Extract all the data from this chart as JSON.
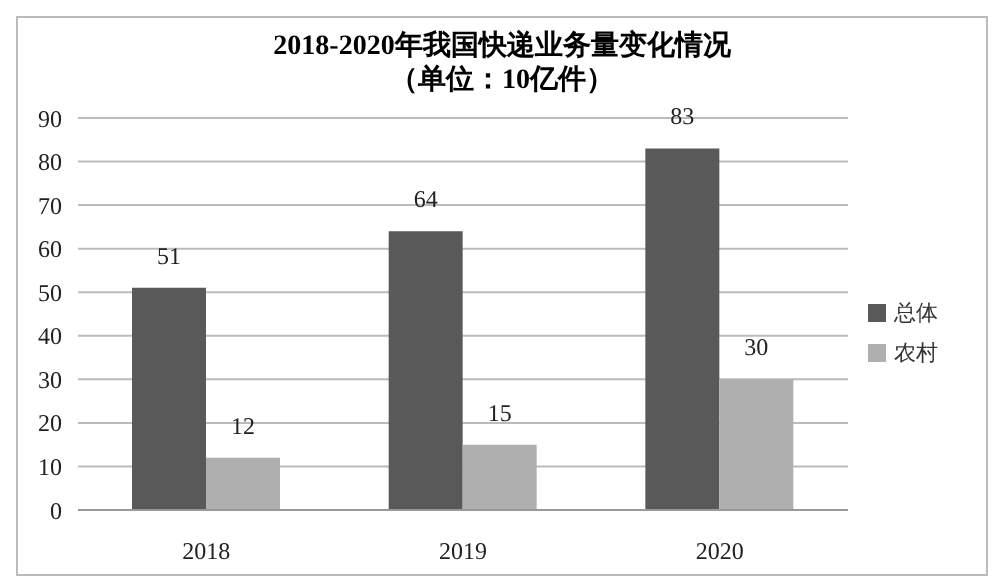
{
  "chart_data": {
    "type": "bar",
    "title": "2018-2020年我国快递业务量变化情况",
    "subtitle": "（单位：10亿件）",
    "categories": [
      "2018",
      "2019",
      "2020"
    ],
    "series": [
      {
        "name": "总体",
        "color": "#595959",
        "values": [
          51,
          64,
          83
        ]
      },
      {
        "name": "农村",
        "color": "#afafaf",
        "values": [
          12,
          15,
          30
        ]
      }
    ],
    "ylim": [
      0,
      90
    ],
    "yticks": [
      0,
      10,
      20,
      30,
      40,
      50,
      60,
      70,
      80,
      90
    ],
    "grid": "y",
    "legend": "right",
    "data_labels": true
  }
}
